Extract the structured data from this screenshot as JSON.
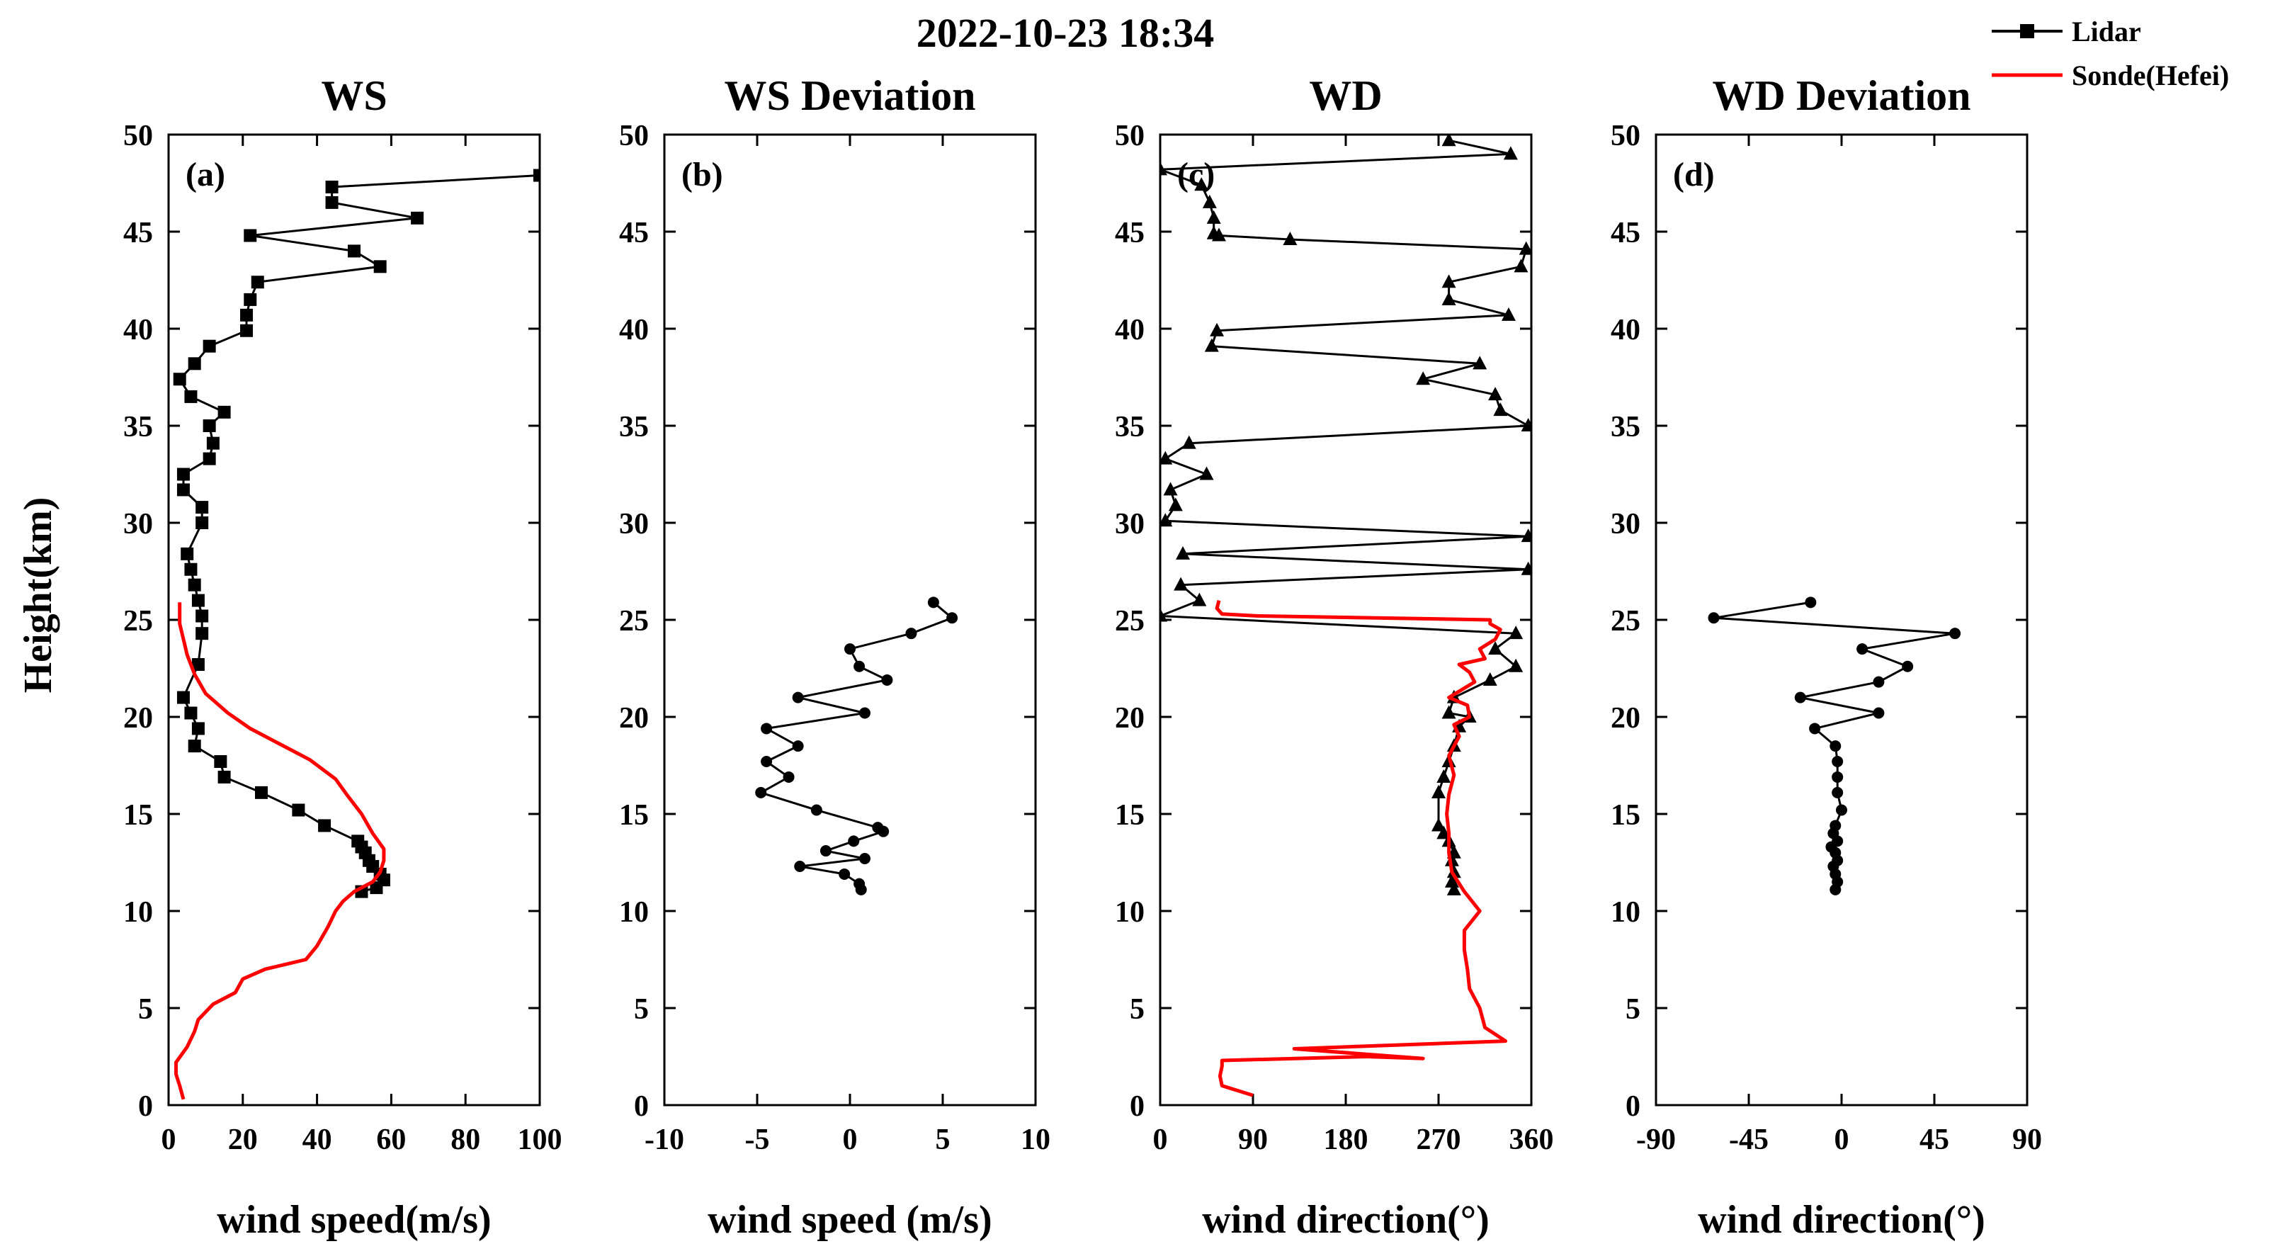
{
  "figure_title": "2022-10-23 18:34",
  "y_axis_label": "Height(km)",
  "legend": {
    "lidar_label": "Lidar",
    "sonde_label": "Sonde(Hefei)",
    "lidar_color": "#000000",
    "sonde_color": "#ff0000"
  },
  "chart_data": [
    {
      "type": "line",
      "panel_letter": "(a)",
      "title": "WS",
      "xlabel": "wind speed(m/s)",
      "ylabel": "Height(km)",
      "xlim": [
        0,
        100
      ],
      "ylim": [
        0,
        50
      ],
      "xticks": [
        0,
        20,
        40,
        60,
        80,
        100
      ],
      "yticks": [
        0,
        5,
        10,
        15,
        20,
        25,
        30,
        35,
        40,
        45,
        50
      ],
      "series": [
        {
          "name": "Lidar",
          "marker": "square",
          "color": "#000000",
          "x": [
            100,
            44,
            44,
            67,
            22,
            50,
            57,
            24,
            22,
            21,
            21,
            11,
            7,
            3,
            6,
            15,
            11,
            12,
            11,
            4,
            4,
            9,
            9,
            5,
            6,
            7,
            8,
            9,
            9,
            8,
            4,
            6,
            8,
            7,
            14,
            15,
            25,
            35,
            42,
            51,
            52,
            53,
            54,
            55,
            57,
            58,
            56,
            52
          ],
          "y": [
            47.9,
            47.3,
            46.5,
            45.7,
            44.8,
            44.0,
            43.2,
            42.4,
            41.5,
            40.7,
            39.9,
            39.1,
            38.2,
            37.4,
            36.5,
            35.7,
            35.0,
            34.1,
            33.3,
            32.5,
            31.7,
            30.8,
            30.0,
            28.4,
            27.6,
            26.8,
            26.0,
            25.2,
            24.3,
            22.7,
            21.0,
            20.2,
            19.4,
            18.5,
            17.7,
            16.9,
            16.1,
            15.2,
            14.4,
            13.6,
            13.3,
            13.0,
            12.6,
            12.3,
            11.9,
            11.6,
            11.2,
            11.0
          ],
          "note": "dense profile"
        },
        {
          "name": "Sonde(Hefei)",
          "marker": "none",
          "color": "#ff0000",
          "x": [
            4,
            3,
            2,
            2,
            5,
            7,
            8,
            12,
            18,
            20,
            26,
            37,
            40,
            43,
            45,
            47,
            50,
            55,
            57,
            58,
            58,
            55,
            52,
            48,
            45,
            38,
            30,
            22,
            16,
            10,
            7,
            5,
            4,
            3,
            3,
            3
          ],
          "y": [
            0.3,
            1.0,
            1.6,
            2.2,
            3.0,
            3.8,
            4.4,
            5.2,
            5.8,
            6.5,
            7.0,
            7.5,
            8.2,
            9.2,
            10.0,
            10.5,
            11.0,
            11.5,
            12.0,
            12.6,
            13.2,
            14.0,
            15.0,
            16.0,
            16.8,
            17.8,
            18.6,
            19.4,
            20.2,
            21.2,
            22.2,
            23.2,
            24.0,
            24.8,
            25.4,
            25.9
          ]
        }
      ]
    },
    {
      "type": "line",
      "panel_letter": "(b)",
      "title": "WS Deviation",
      "xlabel": "wind speed (m/s)",
      "ylabel": "",
      "xlim": [
        -10,
        10
      ],
      "ylim": [
        0,
        50
      ],
      "xticks": [
        -10,
        -5,
        0,
        5,
        10
      ],
      "yticks": [
        0,
        5,
        10,
        15,
        20,
        25,
        30,
        35,
        40,
        45,
        50
      ],
      "series": [
        {
          "name": "WS Deviation",
          "marker": "circle",
          "color": "#000000",
          "x": [
            4.5,
            5.5,
            3.3,
            0.0,
            0.5,
            2.0,
            -2.8,
            0.8,
            -4.5,
            -2.8,
            -4.5,
            -3.3,
            -4.8,
            -1.8,
            1.5,
            1.8,
            0.2,
            -1.3,
            0.8,
            -2.7,
            -0.3,
            0.5,
            0.6
          ],
          "y": [
            25.9,
            25.1,
            24.3,
            23.5,
            22.6,
            21.9,
            21.0,
            20.2,
            19.4,
            18.5,
            17.7,
            16.9,
            16.1,
            15.2,
            14.3,
            14.1,
            13.6,
            13.1,
            12.7,
            12.3,
            11.9,
            11.4,
            11.1
          ]
        }
      ]
    },
    {
      "type": "line",
      "panel_letter": "(c)",
      "title": "WD",
      "xlabel": "wind direction(°)",
      "ylabel": "",
      "xlim": [
        0,
        360
      ],
      "ylim": [
        0,
        50
      ],
      "xticks": [
        0,
        90,
        180,
        270,
        360
      ],
      "yticks": [
        0,
        5,
        10,
        15,
        20,
        25,
        30,
        35,
        40,
        45,
        50
      ],
      "series": [
        {
          "name": "Lidar",
          "marker": "triangle",
          "color": "#000000",
          "x": [
            280,
            340,
            0,
            40,
            48,
            52,
            52,
            57,
            126,
            355,
            350,
            280,
            280,
            338,
            55,
            50,
            310,
            255,
            325,
            330,
            357,
            28,
            5,
            45,
            10,
            15,
            5,
            357,
            22,
            357,
            20,
            38,
            0,
            345,
            325,
            345,
            320,
            285,
            280,
            300,
            290,
            285,
            280,
            275,
            270,
            270,
            275,
            280,
            285,
            283,
            285,
            283,
            285
          ],
          "y": [
            49.7,
            49.0,
            48.2,
            47.4,
            46.5,
            45.7,
            44.9,
            44.8,
            44.6,
            44.1,
            43.2,
            42.4,
            41.5,
            40.7,
            39.9,
            39.1,
            38.2,
            37.4,
            36.6,
            35.8,
            35.0,
            34.1,
            33.3,
            32.5,
            31.7,
            30.9,
            30.1,
            29.3,
            28.4,
            27.6,
            26.8,
            26.0,
            25.2,
            24.3,
            23.5,
            22.6,
            21.9,
            21.0,
            20.2,
            20.0,
            19.5,
            18.5,
            17.7,
            16.9,
            16.1,
            14.4,
            14.0,
            13.6,
            13.0,
            12.6,
            12.0,
            11.5,
            11.1
          ]
        },
        {
          "name": "Sonde(Hefei)",
          "marker": "none",
          "color": "#ff0000",
          "x": [
            90,
            60,
            58,
            60,
            60,
            200,
            255,
            130,
            335,
            315,
            310,
            300,
            298,
            295,
            295,
            310,
            295,
            283,
            280,
            280,
            278,
            280,
            285,
            280,
            290,
            285,
            300,
            298,
            280,
            305,
            300,
            290,
            315,
            310,
            325,
            330,
            320,
            320,
            95,
            60,
            55,
            57
          ],
          "y": [
            0.5,
            1.0,
            1.5,
            2.0,
            2.3,
            2.5,
            2.4,
            2.9,
            3.3,
            4.0,
            5.0,
            6.0,
            7.0,
            8.0,
            9.0,
            10.0,
            11.0,
            12.0,
            13.0,
            14.0,
            15.0,
            16.0,
            17.0,
            18.0,
            19.0,
            19.6,
            20.0,
            20.6,
            21.0,
            21.8,
            22.3,
            22.7,
            23.0,
            23.5,
            24.0,
            24.5,
            24.8,
            25.0,
            25.2,
            25.3,
            25.6,
            26.0
          ]
        }
      ]
    },
    {
      "type": "line",
      "panel_letter": "(d)",
      "title": "WD Deviation",
      "xlabel": "wind direction(°)",
      "ylabel": "",
      "xlim": [
        -90,
        90
      ],
      "ylim": [
        0,
        50
      ],
      "xticks": [
        -90,
        -45,
        0,
        45,
        90
      ],
      "yticks": [
        0,
        5,
        10,
        15,
        20,
        25,
        30,
        35,
        40,
        45,
        50
      ],
      "series": [
        {
          "name": "WD Deviation",
          "marker": "circle",
          "color": "#000000",
          "x": [
            -15,
            -62,
            55,
            10,
            32,
            18,
            -20,
            18,
            -13,
            -3,
            -2,
            -2,
            -2,
            0,
            -3,
            -4,
            -2,
            -5,
            -3,
            -2,
            -4,
            -3,
            -2,
            -3
          ],
          "y": [
            25.9,
            25.1,
            24.3,
            23.5,
            22.6,
            21.8,
            21.0,
            20.2,
            19.4,
            18.5,
            17.7,
            16.9,
            16.1,
            15.2,
            14.4,
            14.0,
            13.6,
            13.3,
            13.0,
            12.6,
            12.3,
            11.9,
            11.5,
            11.1
          ]
        }
      ]
    }
  ]
}
